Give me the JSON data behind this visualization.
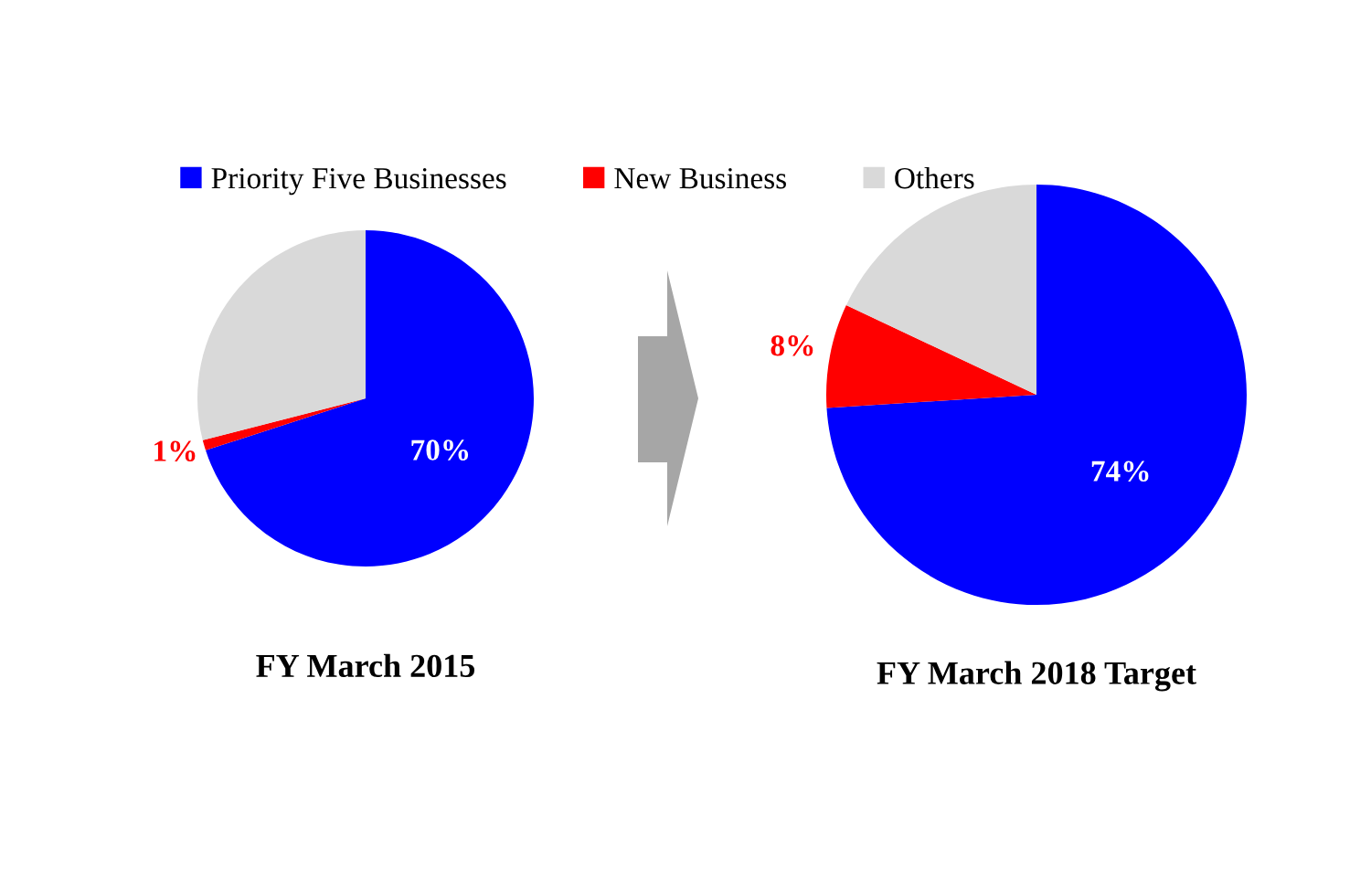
{
  "chart_data": [
    {
      "type": "pie",
      "title": "FY March 2015",
      "categories": [
        "Priority Five Businesses",
        "New Business",
        "Others"
      ],
      "values": [
        70,
        1,
        29
      ],
      "colors": [
        "#0000ff",
        "#ff0000",
        "#d9d9d9"
      ],
      "value_labels": [
        "70%",
        "1%",
        null
      ],
      "legend": "top"
    },
    {
      "type": "pie",
      "title": "FY March 2018 Target",
      "categories": [
        null,
        null,
        null
      ],
      "values": [
        74,
        8,
        18
      ],
      "colors": [
        "#0000ff",
        "#ff0000",
        "#d9d9d9"
      ],
      "value_labels": [
        "74%",
        "8%",
        null
      ]
    }
  ]
}
